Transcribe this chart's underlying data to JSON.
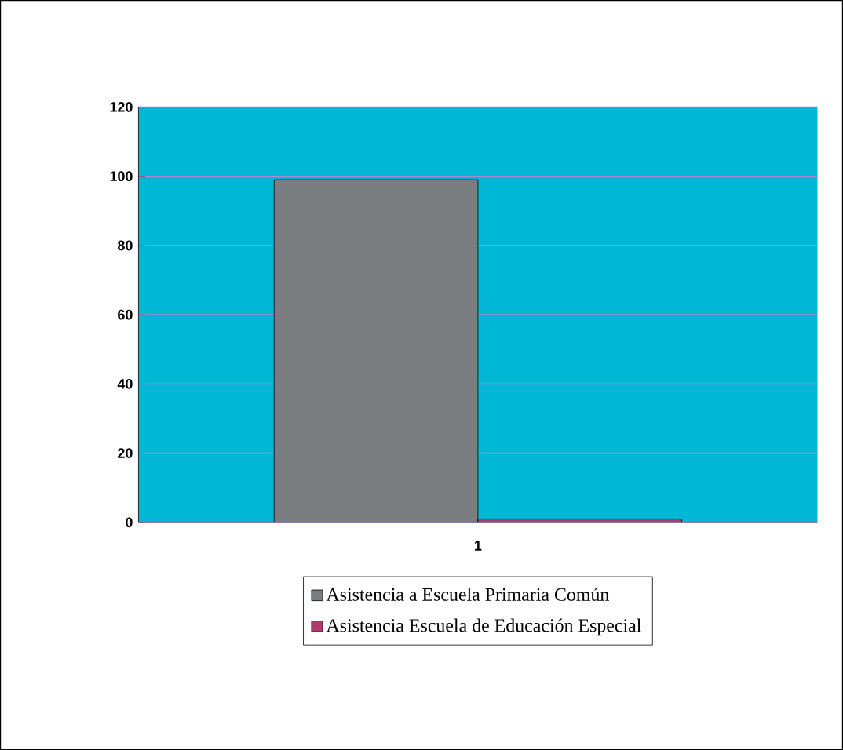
{
  "chart_data": {
    "type": "bar",
    "categories": [
      "1"
    ],
    "series": [
      {
        "name": "Asistencia a Escuela Primaria Común",
        "color": "#7a7d80",
        "values": [
          99
        ]
      },
      {
        "name": "Asistencia Escuela de Educación Especial",
        "color": "#b03a6e",
        "values": [
          1
        ]
      }
    ],
    "ylim": [
      0,
      120
    ],
    "yticks": [
      0,
      20,
      40,
      60,
      80,
      100,
      120
    ],
    "grid": "y",
    "legend": "bottom"
  }
}
